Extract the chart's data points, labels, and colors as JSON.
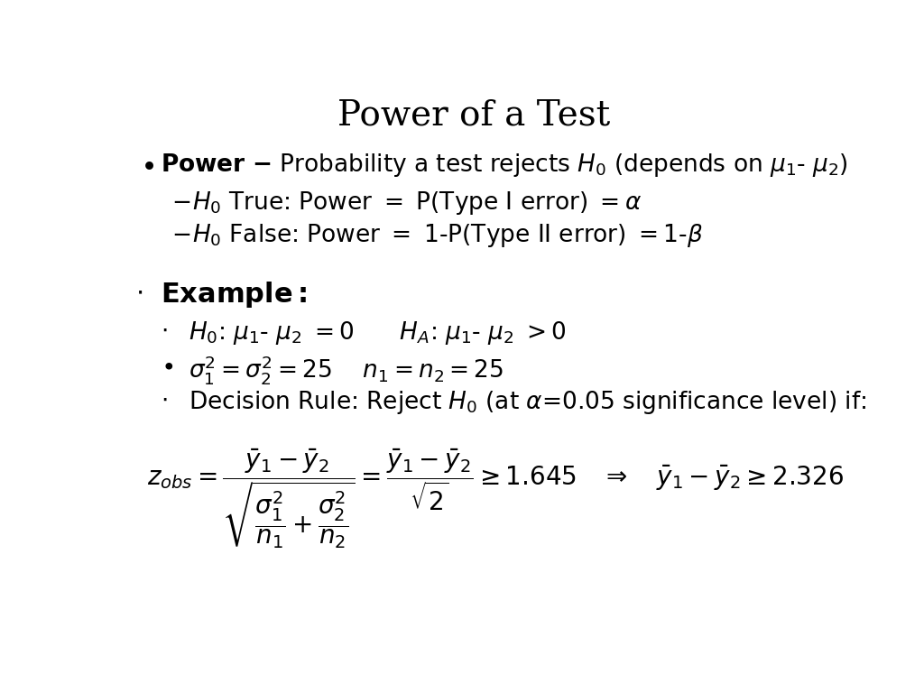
{
  "title": "Power of a Test",
  "background_color": "#ffffff",
  "text_color": "#000000",
  "title_fontsize": 28,
  "body_fontsize": 19,
  "figsize": [
    10.24,
    7.68
  ],
  "dpi": 100
}
